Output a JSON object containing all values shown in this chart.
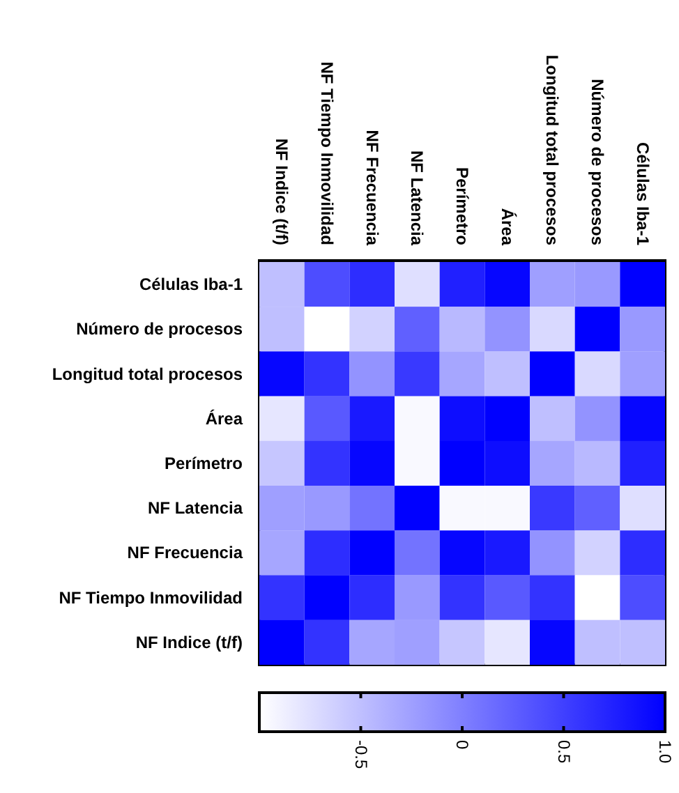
{
  "chart_data": {
    "type": "heatmap",
    "categories": [
      "NF Indice (t/f)",
      "NF Tiempo Inmovilidad",
      "NF Frecuencia",
      "NF Latencia",
      "Perímetro",
      "Área",
      "Longitud total procesos",
      "Número de procesos",
      "Células Iba-1"
    ],
    "y_categories": [
      "Células Iba-1",
      "Número de procesos",
      "Longitud total procesos",
      "Área",
      "Perímetro",
      "NF Latencia",
      "NF Frecuencia",
      "NF Tiempo Inmovilidad",
      "NF Indice (t/f)"
    ],
    "cells": [
      [
        -0.5,
        0.4,
        0.65,
        -0.75,
        0.75,
        0.95,
        -0.25,
        -0.2,
        1
      ],
      [
        -0.5,
        -1,
        -0.65,
        0.25,
        -0.45,
        -0.15,
        -0.7,
        1,
        -0.2
      ],
      [
        0.95,
        0.6,
        -0.15,
        0.55,
        -0.3,
        -0.5,
        1,
        -0.7,
        -0.25
      ],
      [
        -0.8,
        0.3,
        0.8,
        -0.95,
        0.9,
        1,
        -0.5,
        -0.15,
        0.95
      ],
      [
        -0.55,
        0.6,
        0.95,
        -0.95,
        1,
        0.9,
        -0.3,
        -0.45,
        0.75
      ],
      [
        -0.25,
        -0.2,
        0.1,
        1,
        -0.95,
        -0.95,
        0.55,
        0.25,
        -0.75
      ],
      [
        -0.3,
        0.65,
        1,
        0.1,
        0.95,
        0.8,
        -0.15,
        -0.65,
        0.65
      ],
      [
        0.6,
        1,
        0.65,
        -0.2,
        0.6,
        0.3,
        0.6,
        -1,
        0.4
      ],
      [
        1,
        0.6,
        -0.3,
        -0.25,
        -0.55,
        -0.8,
        0.95,
        -0.5,
        -0.5
      ]
    ],
    "clim": [
      -1,
      1
    ],
    "cticks": [
      -0.5,
      0,
      0.5,
      {
        "value": 1,
        "label": "1.0"
      }
    ]
  }
}
